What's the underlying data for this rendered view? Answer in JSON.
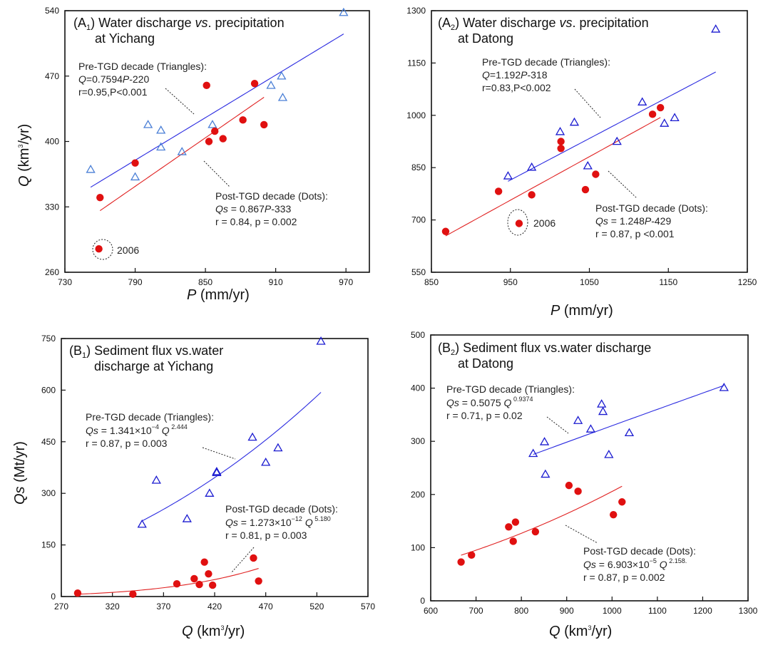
{
  "colors": {
    "tri_blue_light": "#4a7fd6",
    "tri_blue_dark": "#1a1ad0",
    "dot_red": "#e01010",
    "fit_blue": "#2a2ae0",
    "fit_red": "#e02020"
  },
  "chart_data": [
    {
      "type": "scatter",
      "panel": "A1",
      "title_parts": [
        "(A",
        "1",
        ") Water discharge ",
        "vs",
        ". precipitation"
      ],
      "title_line2": "at Yichang",
      "xlabel_var": "P",
      "xlabel_unit": " (mm/yr)",
      "ylabel_var": "Q",
      "ylabel_unit_pre": " (km",
      "ylabel_unit_sup": "3",
      "ylabel_unit_post": "/yr)",
      "xlim": [
        730,
        990
      ],
      "ylim": [
        260,
        540
      ],
      "xticks": [
        "730",
        "790",
        "850",
        "910",
        "970"
      ],
      "yticks": [
        "260",
        "330",
        "400",
        "470",
        "540"
      ],
      "series": [
        {
          "marker": "triangle",
          "color_key": "tri_blue_light",
          "x": [
            752,
            790,
            801,
            812,
            812,
            830,
            856,
            906,
            915,
            916,
            968
          ],
          "y": [
            370,
            362,
            418,
            412,
            394,
            389,
            418,
            460,
            470,
            447,
            538
          ]
        },
        {
          "marker": "dot",
          "color_key": "dot_red",
          "x": [
            760,
            790,
            853,
            858,
            865,
            882,
            892,
            900,
            759,
            851
          ],
          "y": [
            340,
            377,
            400,
            411,
            403,
            423,
            462,
            418,
            285,
            460
          ]
        }
      ],
      "fits": [
        {
          "color_key": "fit_blue",
          "kind": "linear",
          "a": 0.7594,
          "b": -220,
          "x0": 752,
          "x1": 968
        },
        {
          "color_key": "fit_red",
          "kind": "linear",
          "a": 0.867,
          "b": -333,
          "x0": 760,
          "x1": 900
        }
      ],
      "annotations": [
        {
          "lines": [
            "Pre-TGD decade (Triangles):",
            "Q=0.7594P-220",
            "r=0.95,P<0.001"
          ]
        },
        {
          "lines": [
            "Post-TGD decade (Dots):",
            "Qs = 0.867P-333",
            "r = 0.84, p = 0.002"
          ]
        },
        {
          "lines": [
            "2006"
          ]
        }
      ]
    },
    {
      "type": "scatter",
      "panel": "A2",
      "title_parts": [
        "(A",
        "2",
        ") Water discharge ",
        "vs",
        ". precipitation"
      ],
      "title_line2": "at Datong",
      "xlabel_var": "P",
      "xlabel_unit": " (mm/yr)",
      "xlim": [
        850,
        1250
      ],
      "ylim": [
        550,
        1300
      ],
      "xticks": [
        "850",
        "950",
        "1050",
        "1150",
        "1250"
      ],
      "yticks": [
        "550",
        "700",
        "850",
        "1000",
        "1150",
        "1300"
      ],
      "series": [
        {
          "marker": "triangle",
          "color_key": "tri_blue_dark",
          "x": [
            947,
            977,
            1013,
            1031,
            1048,
            1085,
            1117,
            1145,
            1158,
            1210
          ],
          "y": [
            826,
            851,
            953,
            980,
            855,
            925,
            1038,
            977,
            993,
            1247
          ]
        },
        {
          "marker": "dot",
          "color_key": "dot_red",
          "x": [
            868,
            935,
            977,
            1014,
            1014,
            1045,
            1058,
            1130,
            1140,
            961
          ],
          "y": [
            667,
            782,
            772,
            925,
            905,
            787,
            831,
            1003,
            1022,
            690
          ]
        }
      ],
      "fits": [
        {
          "color_key": "fit_blue",
          "kind": "linear",
          "a": 1.192,
          "b": -318,
          "x0": 947,
          "x1": 1210
        },
        {
          "color_key": "fit_red",
          "kind": "linear",
          "a": 1.248,
          "b": -429,
          "x0": 868,
          "x1": 1140
        }
      ],
      "annotations": [
        {
          "lines": [
            "Pre-TGD decade (Triangles):",
            "Q=1.192P-318",
            "r=0.83,P<0.002"
          ]
        },
        {
          "lines": [
            "Post-TGD decade (Dots):",
            "Qs = 1.248P-429",
            "r = 0.87, p <0.001"
          ]
        },
        {
          "lines": [
            "2006"
          ]
        }
      ]
    },
    {
      "type": "scatter",
      "panel": "B1",
      "title_parts": [
        "(B",
        "1",
        ") Sediment flux vs.water",
        "",
        ""
      ],
      "title_line2": "discharge at Yichang",
      "xlabel_var": "Q",
      "xlabel_unit_pre": " (km",
      "xlabel_unit_sup": "3",
      "xlabel_unit_post": "/yr)",
      "ylabel_var": "Qs",
      "ylabel_unit": " (Mt/yr)",
      "xlim": [
        270,
        570
      ],
      "ylim": [
        0,
        750
      ],
      "xticks": [
        "270",
        "320",
        "370",
        "420",
        "470",
        "520",
        "570"
      ],
      "yticks": [
        "0",
        "150",
        "300",
        "450",
        "600",
        "750"
      ],
      "series": [
        {
          "marker": "triangle",
          "color_key": "tri_blue_dark",
          "x": [
            349,
            363,
            393,
            415,
            422,
            422,
            457,
            470,
            482,
            524
          ],
          "y": [
            210,
            338,
            226,
            300,
            360,
            363,
            463,
            390,
            432,
            742
          ]
        },
        {
          "marker": "dot",
          "color_key": "dot_red",
          "x": [
            286,
            340,
            383,
            400,
            405,
            410,
            414,
            418,
            458,
            463
          ],
          "y": [
            10,
            7,
            37,
            52,
            35,
            100,
            66,
            33,
            112,
            45
          ]
        }
      ],
      "fits": [
        {
          "color_key": "fit_blue",
          "kind": "power",
          "a": 0.0001341,
          "b": 2.444,
          "x0": 349,
          "x1": 524
        },
        {
          "color_key": "fit_red",
          "kind": "power",
          "a": 1.273e-12,
          "b": 5.18,
          "x0": 286,
          "x1": 463
        }
      ],
      "annotations": [
        {
          "lines": [
            "Pre-TGD decade (Triangles):",
            "Qs = 1.341×10-4 Q2.444",
            "r = 0.87, p = 0.003"
          ],
          "eq_parts": [
            "Qs",
            " = 1.341",
            "×",
            "10",
            "−4",
            " Q",
            " 2.444"
          ]
        },
        {
          "lines": [
            "Post-TGD decade (Dots):",
            "Qs = 1.273×10-12 Q5.180",
            "r = 0.81, p = 0.003"
          ],
          "eq_parts": [
            "Qs",
            " = 1.273",
            "×",
            "10",
            "−12",
            " Q",
            " 5.180"
          ]
        }
      ]
    },
    {
      "type": "scatter",
      "panel": "B2",
      "title_parts": [
        "(B",
        "2",
        ") Sediment flux vs.water discharge",
        "",
        ""
      ],
      "title_line2": "at Datong",
      "xlabel_var": "Q",
      "xlabel_unit_pre": " (km",
      "xlabel_unit_sup": "3",
      "xlabel_unit_post": "/yr)",
      "xlim": [
        600,
        1300
      ],
      "ylim": [
        0,
        500
      ],
      "xticks": [
        "600",
        "700",
        "800",
        "900",
        "1000",
        "1100",
        "1200",
        "1300"
      ],
      "yticks": [
        "0",
        "100",
        "200",
        "300",
        "400",
        "500"
      ],
      "series": [
        {
          "marker": "triangle",
          "color_key": "tri_blue_dark",
          "x": [
            826,
            851,
            853,
            925,
            953,
            977,
            980,
            993,
            1038,
            1247
          ],
          "y": [
            277,
            299,
            238,
            339,
            323,
            370,
            356,
            275,
            316,
            401
          ]
        },
        {
          "marker": "dot",
          "color_key": "dot_red",
          "x": [
            667,
            690,
            772,
            782,
            787,
            831,
            905,
            925,
            1003,
            1022
          ],
          "y": [
            73,
            86,
            139,
            112,
            148,
            130,
            217,
            206,
            162,
            186
          ]
        }
      ],
      "fits": [
        {
          "color_key": "fit_blue",
          "kind": "power",
          "a": 0.5075,
          "b": 0.9374,
          "x0": 826,
          "x1": 1247
        },
        {
          "color_key": "fit_red",
          "kind": "power",
          "a": 6.903e-05,
          "b": 2.158,
          "x0": 667,
          "x1": 1022
        }
      ],
      "annotations": [
        {
          "lines": [
            "Pre-TGD decade (Triangles):",
            "Qs = 0.5075 Q0.9374",
            "r = 0.71, p = 0.02"
          ],
          "eq_parts": [
            "Qs",
            " = 0.5075",
            "",
            "",
            "",
            " Q",
            " 0.9374"
          ]
        },
        {
          "lines": [
            "Post-TGD decade (Dots):",
            "Qs = 6.903×10-5 Q2.158.",
            "r = 0.87, p = 0.002"
          ],
          "eq_parts": [
            "Qs",
            " = 6.903",
            "×",
            "10",
            "−5",
            " Q",
            " 2.158."
          ]
        }
      ]
    }
  ]
}
